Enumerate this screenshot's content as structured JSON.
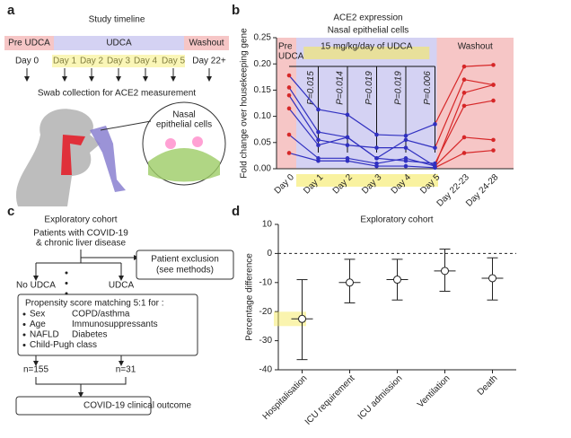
{
  "panel_a": {
    "label": "a",
    "title": "Study timeline",
    "phases": [
      "Pre UDCA",
      "UDCA",
      "Washout"
    ],
    "days": [
      "Day 0",
      "Day 1",
      "Day 2",
      "Day 3",
      "Day 4",
      "Day 5",
      "Day 22+"
    ],
    "caption": "Swab collection for ACE2 measurement",
    "inset": [
      "Nasal",
      "epithelial cells"
    ]
  },
  "panel_c": {
    "label": "c",
    "title": "Exploratory cohort",
    "population": [
      "Patients with COVID-19",
      "& chronic liver disease"
    ],
    "exclusion": [
      "Patient exclusion",
      "(see methods)"
    ],
    "arm_control": "No UDCA",
    "arm_treated": "UDCA",
    "matching_title": "Propensity score matching 5:1 for :",
    "matching_left": [
      "Sex",
      "Age",
      "NAFLD",
      "Child-Pugh class"
    ],
    "matching_right": [
      "COPD/asthma",
      "Immunosuppressants",
      "Diabetes"
    ],
    "n_control": "n=155",
    "n_treated": "n=31",
    "outcome": "COVID-19 clinical outcome"
  },
  "chart_data": [
    {
      "type": "line",
      "panel_label": "b",
      "title": "ACE2 expression",
      "subtitle": "Nasal epithelial cells",
      "y_label": "Fold change over housekeeping gene",
      "categories": [
        "Day 0",
        "Day 1",
        "Day 2",
        "Day 3",
        "Day 4",
        "Day 5",
        "Day 22-23",
        "Day 24-28"
      ],
      "ylim": [
        0,
        0.25
      ],
      "yticks": [
        {
          "value": 0,
          "label": "0.00"
        },
        {
          "value": 0.05,
          "label": "0.05"
        },
        {
          "value": 0.1,
          "label": "0.10"
        },
        {
          "value": 0.15,
          "label": "0.15"
        },
        {
          "value": 0.2,
          "label": "0.20"
        },
        {
          "value": 0.25,
          "label": "0.25"
        }
      ],
      "phases": [
        {
          "label": [
            "Pre",
            "UDCA"
          ],
          "start": 0,
          "end": 0,
          "color": "#f6c6c6"
        },
        {
          "label": [
            "15 mg/kg/day of UDCA"
          ],
          "start": 1,
          "end": 5,
          "color": "#d4d2f3"
        },
        {
          "label": [
            "Washout"
          ],
          "start": 6,
          "end": 7,
          "color": "#f6c6c6"
        }
      ],
      "off_treatment_color": "#d62728",
      "series": [
        {
          "color": "#3030c0",
          "values": [
            0.178,
            0.113,
            0.103,
            0.065,
            0.063,
            0.085,
            0.195,
            0.198
          ]
        },
        {
          "color": "#3030c0",
          "values": [
            0.155,
            0.07,
            0.06,
            0.02,
            0.055,
            0.04,
            0.17,
            0.16
          ]
        },
        {
          "color": "#3030c0",
          "values": [
            0.14,
            0.055,
            0.045,
            0.04,
            0.04,
            0.005,
            0.145,
            0.16
          ]
        },
        {
          "color": "#3030c0",
          "values": [
            0.115,
            0.045,
            0.06,
            0.02,
            0.015,
            0.01,
            0.12,
            0.13
          ]
        },
        {
          "color": "#3030c0",
          "values": [
            0.065,
            0.02,
            0.02,
            0.01,
            0.02,
            0.005,
            0.06,
            0.055
          ]
        },
        {
          "color": "#3030c0",
          "values": [
            0.03,
            0.015,
            0.015,
            0.005,
            0.005,
            0.002,
            0.03,
            0.035
          ]
        }
      ],
      "annotations": [
        {
          "category": 1,
          "label": "P=0.015"
        },
        {
          "category": 2,
          "label": "P=0.014"
        },
        {
          "category": 3,
          "label": "P=0.019"
        },
        {
          "category": 4,
          "label": "P=0.019"
        },
        {
          "category": 5,
          "label": "P=0.006"
        }
      ]
    },
    {
      "type": "errorbar",
      "panel_label": "d",
      "title": "Exploratory cohort",
      "y_label": "Percentage difference",
      "categories": [
        "Hospitalisation",
        "ICU requirement",
        "ICU admission",
        "Ventilation",
        "Death"
      ],
      "values": [
        -22.5,
        -10,
        -9,
        -6,
        -8.5
      ],
      "ci_low": [
        -36.5,
        -17,
        -16,
        -13,
        -16
      ],
      "ci_high": [
        -9,
        -2,
        -2,
        1.5,
        -1.5
      ],
      "ylim": [
        -40,
        10
      ],
      "yticks": [
        -40,
        -30,
        -20,
        -10,
        0,
        10
      ],
      "reference_line": 0,
      "color": "#222222"
    }
  ]
}
